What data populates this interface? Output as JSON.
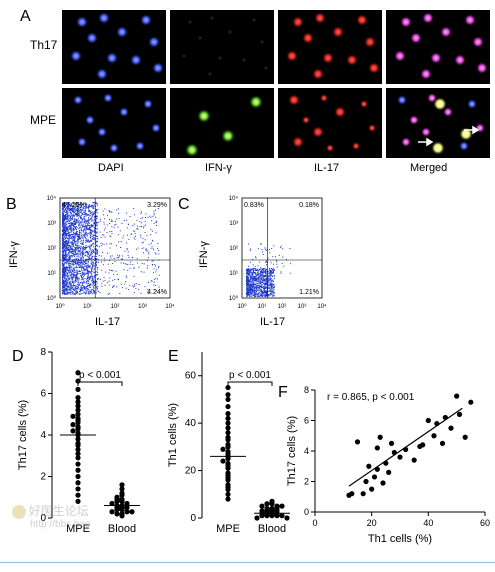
{
  "panels": {
    "A": {
      "letter": "A",
      "rows": [
        "Th17",
        "MPE"
      ],
      "columns": [
        "DAPI",
        "IFN-γ",
        "IL-17",
        "Merged"
      ]
    },
    "B": {
      "letter": "B",
      "ylabel": "IFN-γ",
      "xlabel": "IL-17",
      "quadrants": {
        "ul": "47.25%",
        "ur": "3.29%",
        "lr": "4.24%"
      },
      "ticks": [
        "10⁰",
        "10¹",
        "10²",
        "10³",
        "10⁴"
      ]
    },
    "C": {
      "letter": "C",
      "ylabel": "IFN-γ",
      "xlabel": "IL-17",
      "quadrants": {
        "ul": "0.83%",
        "ur": "0.18%",
        "lr": "1.21%"
      },
      "ticks": [
        "10⁰",
        "10¹",
        "10²",
        "10³",
        "10⁴"
      ]
    },
    "D": {
      "letter": "D",
      "pvalue": "p < 0.001"
    },
    "E": {
      "letter": "E",
      "pvalue": "p < 0.001"
    },
    "F": {
      "letter": "F",
      "stat": "r = 0.865, p < 0.001"
    }
  },
  "chart_data": [
    {
      "type": "scatter",
      "panel": "D",
      "ylabel": "Th17 cells (%)",
      "categories": [
        "MPE",
        "Blood"
      ],
      "ylim": [
        0,
        8
      ],
      "yticks": [
        "0",
        "2",
        "4",
        "6",
        "8"
      ],
      "series": [
        {
          "category": "MPE",
          "values": [
            7.0,
            6.6,
            6.2,
            5.8,
            5.6,
            5.4,
            5.2,
            5.0,
            4.9,
            4.8,
            4.7,
            4.6,
            4.5,
            4.4,
            4.3,
            4.2,
            4.1,
            4.0,
            3.8,
            3.6,
            3.5,
            3.3,
            3.1,
            2.9,
            2.6,
            2.3,
            2.0,
            1.7,
            1.4,
            1.1,
            0.8
          ],
          "mean": 4.0
        },
        {
          "category": "Blood",
          "values": [
            1.6,
            1.4,
            1.2,
            1.1,
            1.0,
            0.9,
            0.9,
            0.8,
            0.8,
            0.7,
            0.7,
            0.6,
            0.6,
            0.5,
            0.5,
            0.5,
            0.4,
            0.4,
            0.3,
            0.3,
            0.3,
            0.2,
            0.2,
            0.1
          ],
          "mean": 0.6
        }
      ]
    },
    {
      "type": "scatter",
      "panel": "E",
      "ylabel": "Th1 cells (%)",
      "categories": [
        "MPE",
        "Blood"
      ],
      "ylim": [
        0,
        70
      ],
      "yticks": [
        "0",
        "20",
        "40",
        "60"
      ],
      "series": [
        {
          "category": "MPE",
          "values": [
            55,
            52,
            50,
            47,
            44,
            42,
            40,
            38,
            36,
            34,
            33,
            31,
            30,
            29,
            28,
            27,
            26,
            25,
            24,
            23,
            22,
            21,
            19,
            18,
            17,
            16,
            14,
            13,
            12,
            10,
            8
          ],
          "mean": 26
        },
        {
          "category": "Blood",
          "values": [
            7,
            6,
            6,
            5,
            5,
            5,
            4,
            4,
            4,
            3,
            3,
            3,
            3,
            2,
            2,
            2,
            2,
            1,
            1,
            1,
            1,
            1,
            0,
            0
          ],
          "mean": 2
        }
      ]
    },
    {
      "type": "scatter",
      "panel": "F",
      "xlabel": "Th1 cells (%)",
      "ylabel": "Th17 cells (%)",
      "xlim": [
        0,
        60
      ],
      "ylim": [
        0,
        8
      ],
      "xticks": [
        "0",
        "20",
        "40",
        "60"
      ],
      "yticks": [
        "0",
        "2",
        "4",
        "6",
        "8"
      ],
      "points": [
        [
          12,
          1.1
        ],
        [
          13,
          1.2
        ],
        [
          15,
          4.6
        ],
        [
          17,
          1.2
        ],
        [
          18,
          2.0
        ],
        [
          19,
          3.0
        ],
        [
          20,
          1.5
        ],
        [
          21,
          2.3
        ],
        [
          22,
          4.2
        ],
        [
          22,
          2.8
        ],
        [
          23,
          4.9
        ],
        [
          24,
          1.9
        ],
        [
          25,
          3.2
        ],
        [
          26,
          2.6
        ],
        [
          27,
          4.5
        ],
        [
          28,
          3.9
        ],
        [
          30,
          3.6
        ],
        [
          32,
          4.1
        ],
        [
          35,
          3.4
        ],
        [
          37,
          4.3
        ],
        [
          38,
          4.4
        ],
        [
          40,
          6.0
        ],
        [
          42,
          5.0
        ],
        [
          43,
          5.8
        ],
        [
          45,
          4.5
        ],
        [
          46,
          6.2
        ],
        [
          48,
          5.5
        ],
        [
          50,
          7.6
        ],
        [
          51,
          6.4
        ],
        [
          53,
          4.9
        ],
        [
          55,
          7.2
        ]
      ],
      "fit": [
        [
          12,
          1.7
        ],
        [
          52,
          6.8
        ]
      ]
    }
  ],
  "watermark": {
    "line1": "好医生论坛",
    "line2": "http://bbs.hao"
  }
}
